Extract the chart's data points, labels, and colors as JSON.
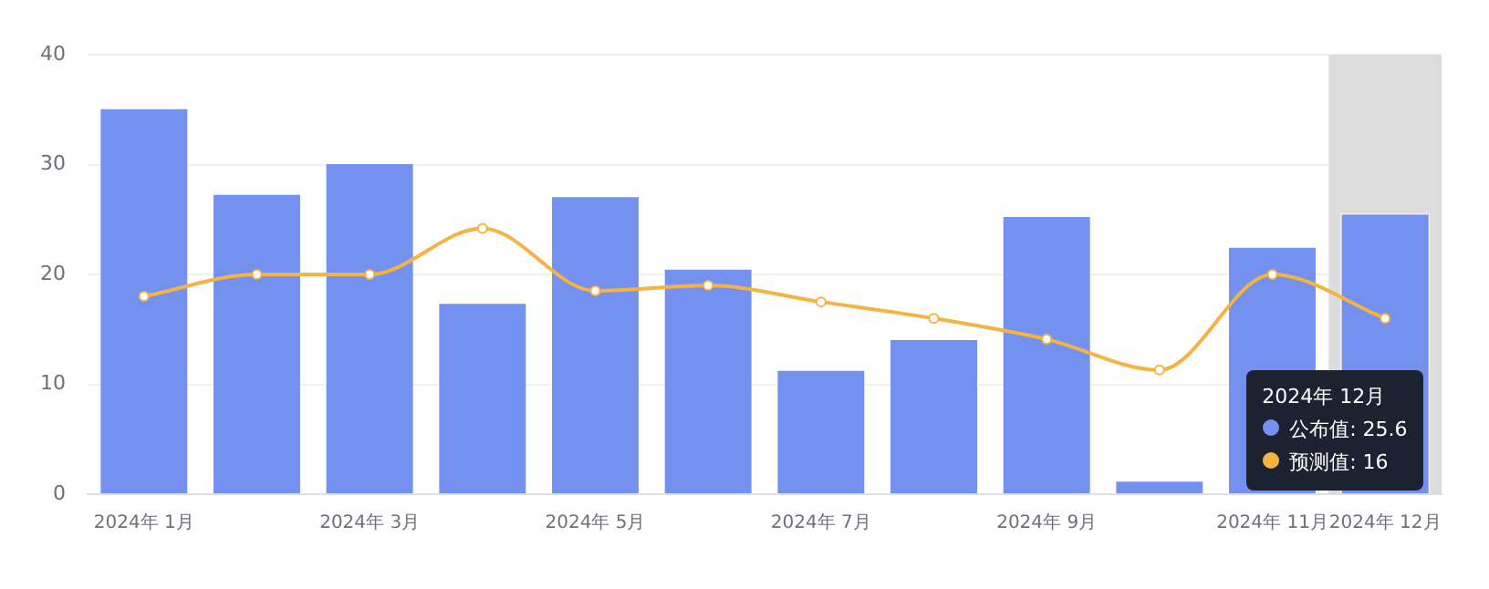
{
  "chart_data": {
    "type": "bar",
    "categories": [
      "2024年 1月",
      null,
      "2024年 3月",
      null,
      "2024年 5月",
      null,
      "2024年 7月",
      null,
      "2024年 9月",
      null,
      "2024年 11月",
      "2024年 12月"
    ],
    "series": [
      {
        "color": "#7591f0",
        "values": [
          35.2,
          27.4,
          30.2,
          17.5,
          27.2,
          20.6,
          11.4,
          14.2,
          25.4,
          1.3,
          22.6,
          25.6
        ]
      },
      {
        "type": "line",
        "color": "#f5b342",
        "values": [
          18,
          20,
          20,
          24.2,
          18.5,
          19,
          17.5,
          16,
          14.1,
          11.3,
          20,
          16
        ]
      }
    ],
    "ylim": [
      0,
      40
    ],
    "yticks": [
      0,
      10,
      20,
      30,
      40
    ],
    "grid": "y",
    "marker": "circle",
    "bands": [
      {
        "axis": "x",
        "from": "2024年 12月",
        "to": "2024年 12月",
        "color": "#dcdcdc"
      }
    ],
    "annotations": [
      "公布值: 25.6",
      "预测值: 16"
    ]
  }
}
